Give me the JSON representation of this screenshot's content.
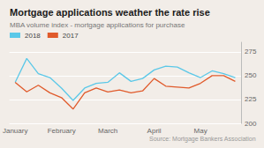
{
  "chart_data": {
    "type": "line",
    "title": "Mortgage applications weather the rate rise",
    "subtitle": "MBA volume index - mortgage applications for purchase",
    "annotations": [
      "Source: Mortgage Bankers Association"
    ],
    "categories": [
      "January",
      null,
      null,
      null,
      "February",
      null,
      null,
      null,
      "March",
      null,
      null,
      null,
      "April",
      null,
      null,
      null,
      "May",
      null,
      null,
      null
    ],
    "series": [
      {
        "name": "2018",
        "color": "#5BC8E8",
        "values": [
          243,
          268,
          252,
          248,
          237,
          224,
          237,
          242,
          243,
          253,
          244,
          247,
          256,
          260,
          259,
          253,
          248,
          255,
          252,
          248
        ]
      },
      {
        "name": "2017",
        "color": "#E05A2B",
        "values": [
          243,
          233,
          240,
          232,
          227,
          215,
          232,
          237,
          233,
          235,
          232,
          234,
          247,
          239,
          238,
          237,
          242,
          250,
          250,
          244
        ]
      }
    ],
    "ylim": [
      200,
      285
    ],
    "yticks": [
      200,
      225,
      250,
      275
    ],
    "grid": true,
    "legend": "upper left",
    "background_color": "#f2ede8",
    "grid_color": "#ffffff"
  }
}
